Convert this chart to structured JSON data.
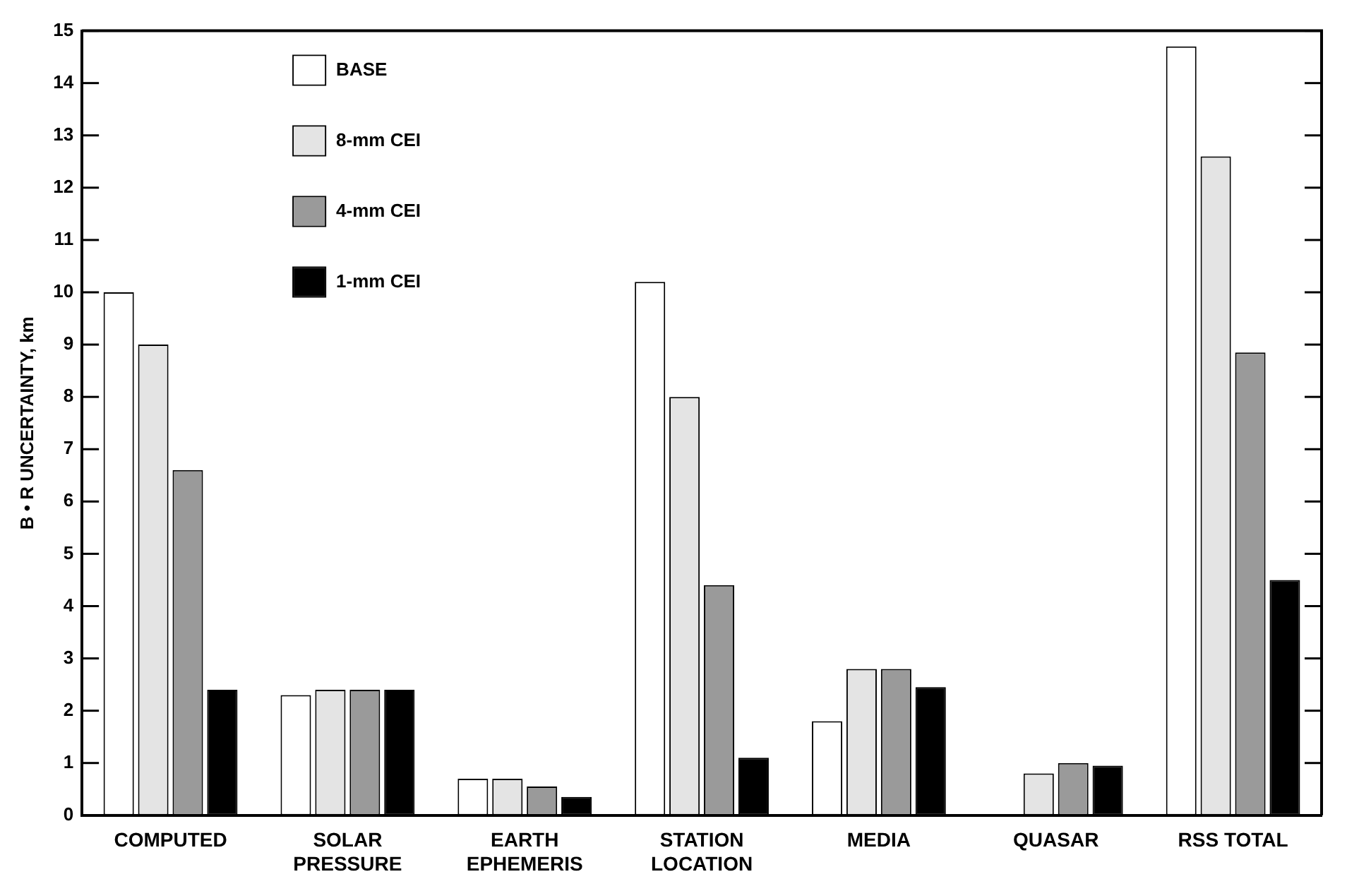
{
  "chart_data": {
    "type": "bar",
    "ylabel": "B • R UNCERTAINTY, km",
    "categories": [
      "COMPUTED",
      "SOLAR\nPRESSURE",
      "EARTH\nEPHEMERIS",
      "STATION\nLOCATION",
      "MEDIA",
      "QUASAR",
      "RSS TOTAL"
    ],
    "series": [
      {
        "name": "BASE",
        "color": "#ffffff",
        "values": [
          10,
          2.3,
          0.7,
          10.2,
          1.8,
          null,
          14.7
        ]
      },
      {
        "name": "8-mm CEI",
        "color": "#e4e4e4",
        "values": [
          9,
          2.4,
          0.7,
          8.0,
          2.8,
          0.8,
          12.6
        ]
      },
      {
        "name": "4-mm CEI",
        "color": "#9a9a9a",
        "values": [
          6.6,
          2.4,
          0.55,
          4.4,
          2.8,
          1.0,
          8.85
        ]
      },
      {
        "name": "1-mm CEI",
        "color": "#000000",
        "values": [
          2.4,
          2.4,
          0.35,
          1.1,
          2.45,
          0.95,
          4.5
        ]
      }
    ],
    "ylim": [
      0,
      15
    ],
    "yticks": [
      0,
      1,
      2,
      3,
      4,
      5,
      6,
      7,
      8,
      9,
      10,
      11,
      12,
      13,
      14,
      15
    ],
    "grid": false,
    "legend": "top left"
  }
}
